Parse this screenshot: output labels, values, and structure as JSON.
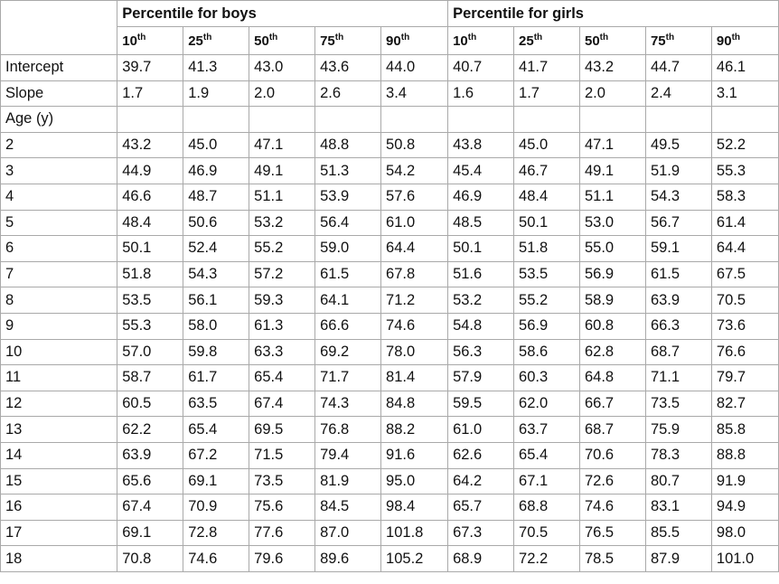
{
  "groups": [
    "Percentile for boys",
    "Percentile for girls"
  ],
  "percentiles": [
    {
      "num": "10",
      "suf": "th"
    },
    {
      "num": "25",
      "suf": "th"
    },
    {
      "num": "50",
      "suf": "th"
    },
    {
      "num": "75",
      "suf": "th"
    },
    {
      "num": "90",
      "suf": "th"
    }
  ],
  "rows": [
    {
      "label": "Intercept",
      "values": [
        "39.7",
        "41.3",
        "43.0",
        "43.6",
        "44.0",
        "40.7",
        "41.7",
        "43.2",
        "44.7",
        "46.1"
      ]
    },
    {
      "label": "Slope",
      "values": [
        "1.7",
        "1.9",
        "2.0",
        "2.6",
        "3.4",
        "1.6",
        "1.7",
        "2.0",
        "2.4",
        "3.1"
      ]
    },
    {
      "label": "Age (y)",
      "values": [
        "",
        "",
        "",
        "",
        "",
        "",
        "",
        "",
        "",
        ""
      ]
    },
    {
      "label": "2",
      "values": [
        "43.2",
        "45.0",
        "47.1",
        "48.8",
        "50.8",
        "43.8",
        "45.0",
        "47.1",
        "49.5",
        "52.2"
      ]
    },
    {
      "label": "3",
      "values": [
        "44.9",
        "46.9",
        "49.1",
        "51.3",
        "54.2",
        "45.4",
        "46.7",
        "49.1",
        "51.9",
        "55.3"
      ]
    },
    {
      "label": "4",
      "values": [
        "46.6",
        "48.7",
        "51.1",
        "53.9",
        "57.6",
        "46.9",
        "48.4",
        "51.1",
        "54.3",
        "58.3"
      ]
    },
    {
      "label": "5",
      "values": [
        "48.4",
        "50.6",
        "53.2",
        "56.4",
        "61.0",
        "48.5",
        "50.1",
        "53.0",
        "56.7",
        "61.4"
      ]
    },
    {
      "label": "6",
      "values": [
        "50.1",
        "52.4",
        "55.2",
        "59.0",
        "64.4",
        "50.1",
        "51.8",
        "55.0",
        "59.1",
        "64.4"
      ]
    },
    {
      "label": "7",
      "values": [
        "51.8",
        "54.3",
        "57.2",
        "61.5",
        "67.8",
        "51.6",
        "53.5",
        "56.9",
        "61.5",
        "67.5"
      ]
    },
    {
      "label": "8",
      "values": [
        "53.5",
        "56.1",
        "59.3",
        "64.1",
        "71.2",
        "53.2",
        "55.2",
        "58.9",
        "63.9",
        "70.5"
      ]
    },
    {
      "label": "9",
      "values": [
        "55.3",
        "58.0",
        "61.3",
        "66.6",
        "74.6",
        "54.8",
        "56.9",
        "60.8",
        "66.3",
        "73.6"
      ]
    },
    {
      "label": "10",
      "values": [
        "57.0",
        "59.8",
        "63.3",
        "69.2",
        "78.0",
        "56.3",
        "58.6",
        "62.8",
        "68.7",
        "76.6"
      ]
    },
    {
      "label": "11",
      "values": [
        "58.7",
        "61.7",
        "65.4",
        "71.7",
        "81.4",
        "57.9",
        "60.3",
        "64.8",
        "71.1",
        "79.7"
      ]
    },
    {
      "label": "12",
      "values": [
        "60.5",
        "63.5",
        "67.4",
        "74.3",
        "84.8",
        "59.5",
        "62.0",
        "66.7",
        "73.5",
        "82.7"
      ]
    },
    {
      "label": "13",
      "values": [
        "62.2",
        "65.4",
        "69.5",
        "76.8",
        "88.2",
        "61.0",
        "63.7",
        "68.7",
        "75.9",
        "85.8"
      ]
    },
    {
      "label": "14",
      "values": [
        "63.9",
        "67.2",
        "71.5",
        "79.4",
        "91.6",
        "62.6",
        "65.4",
        "70.6",
        "78.3",
        "88.8"
      ]
    },
    {
      "label": "15",
      "values": [
        "65.6",
        "69.1",
        "73.5",
        "81.9",
        "95.0",
        "64.2",
        "67.1",
        "72.6",
        "80.7",
        "91.9"
      ]
    },
    {
      "label": "16",
      "values": [
        "67.4",
        "70.9",
        "75.6",
        "84.5",
        "98.4",
        "65.7",
        "68.8",
        "74.6",
        "83.1",
        "94.9"
      ]
    },
    {
      "label": "17",
      "values": [
        "69.1",
        "72.8",
        "77.6",
        "87.0",
        "101.8",
        "67.3",
        "70.5",
        "76.5",
        "85.5",
        "98.0"
      ]
    },
    {
      "label": "18",
      "values": [
        "70.8",
        "74.6",
        "79.6",
        "89.6",
        "105.2",
        "68.9",
        "72.2",
        "78.5",
        "87.9",
        "101.0"
      ]
    }
  ]
}
